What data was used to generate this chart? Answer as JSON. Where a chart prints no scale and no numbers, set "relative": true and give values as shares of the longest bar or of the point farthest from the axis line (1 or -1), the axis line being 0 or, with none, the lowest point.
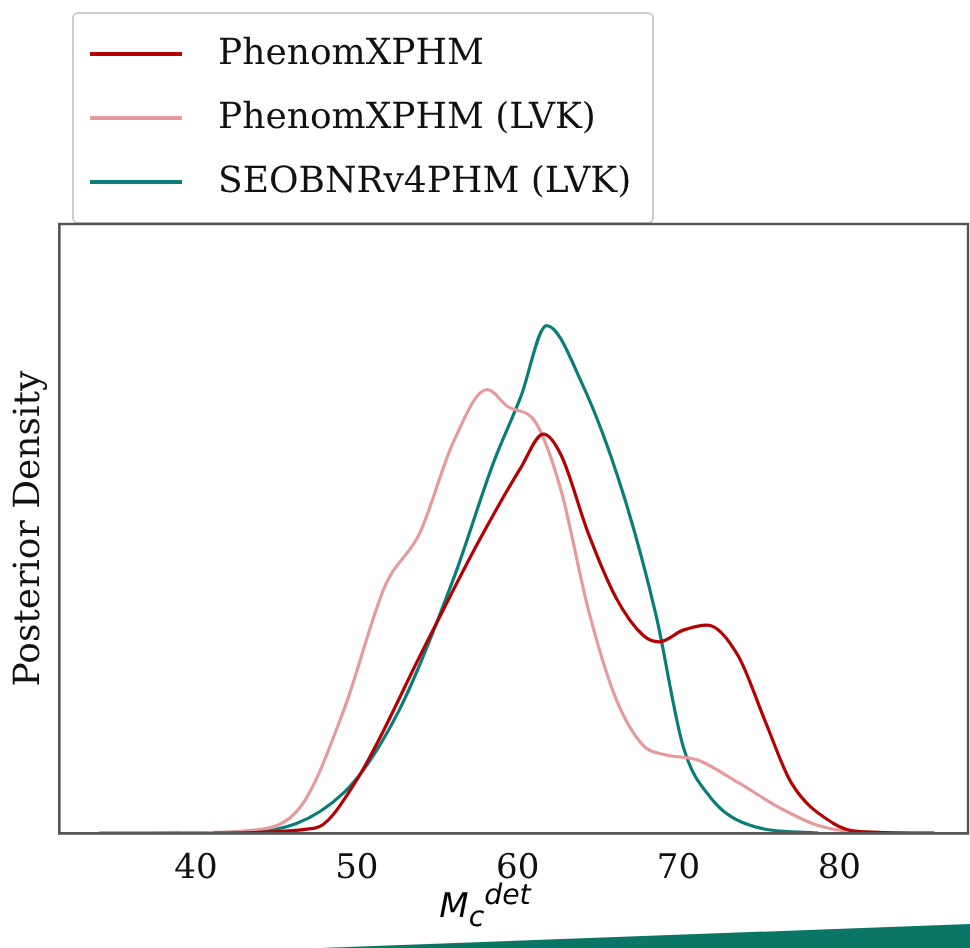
{
  "chart_data": {
    "type": "line",
    "ylabel": "Posterior Density",
    "xlabel": "M$_{c}$$^{det}$",
    "relative": true,
    "xlim": [
      31.5,
      88
    ],
    "xticks": [
      40,
      50,
      60,
      70,
      80
    ],
    "grid": false,
    "legend": "top left",
    "marker": "none",
    "line_style": "solid",
    "series": [
      {
        "name": "PhenomXPHM",
        "color": "#b30000",
        "x": [
          41.1,
          47.4,
          49.9,
          54.1,
          57.5,
          60.2,
          61.6,
          62.7,
          64.4,
          66.1,
          67.8,
          68.8,
          70.3,
          71.8,
          73.7,
          75.4,
          77.0,
          79.6,
          81.3,
          85.9
        ],
        "values": [
          0,
          0.01,
          0.1,
          0.36,
          0.57,
          0.72,
          0.786,
          0.745,
          0.59,
          0.465,
          0.39,
          0.377,
          0.4,
          0.41,
          0.35,
          0.22,
          0.1,
          0.02,
          0.003,
          0
        ]
      },
      {
        "name": "PhenomXPHM (LVK)",
        "color": "#e59a9e",
        "x": [
          39.0,
          43.3,
          46.6,
          49.2,
          51.8,
          53.9,
          56.0,
          58.1,
          59.4,
          61.1,
          62.7,
          64.4,
          66.1,
          67.8,
          69.1,
          71.2,
          73.7,
          76.3,
          78.7,
          81.3,
          85.9
        ],
        "values": [
          0,
          0.005,
          0.056,
          0.243,
          0.49,
          0.59,
          0.77,
          0.874,
          0.84,
          0.81,
          0.675,
          0.44,
          0.266,
          0.173,
          0.155,
          0.144,
          0.1,
          0.05,
          0.015,
          0.002,
          0
        ]
      },
      {
        "name": "SEOBNRv4PHM (LVK)",
        "color": "#0b7d79",
        "x": [
          34.0,
          43.3,
          49.2,
          52.6,
          56.0,
          58.5,
          60.2,
          61.8,
          64.0,
          66.5,
          68.6,
          70.3,
          72.0,
          74.5,
          78.7
        ],
        "values": [
          0,
          0.002,
          0.08,
          0.24,
          0.5,
          0.73,
          0.86,
          1,
          0.886,
          0.675,
          0.43,
          0.17,
          0.07,
          0.015,
          0
        ]
      }
    ]
  }
}
